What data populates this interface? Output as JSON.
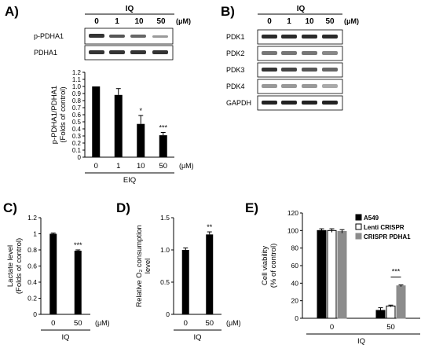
{
  "panels": [
    {
      "id": "A",
      "label": "A)",
      "type": "western-blot+bar",
      "lanes_label": "IQ",
      "doses": [
        "0",
        "1",
        "10",
        "50"
      ],
      "unit": "(μM)",
      "bands": [
        "p-PDHA1",
        "PDHA1"
      ]
    },
    {
      "id": "B",
      "label": "B)",
      "type": "western-blot",
      "lanes_label": "IQ",
      "doses": [
        "0",
        "1",
        "10",
        "50"
      ],
      "unit": "(μM)",
      "bands": [
        "PDK1",
        "PDK2",
        "PDK3",
        "PDK4",
        "GAPDH"
      ]
    },
    {
      "id": "C",
      "label": "C)"
    },
    {
      "id": "D",
      "label": "D)"
    },
    {
      "id": "E",
      "label": "E)"
    }
  ],
  "chart_data": [
    {
      "panel": "A",
      "type": "bar",
      "categories": [
        "0",
        "1",
        "10",
        "50"
      ],
      "values": [
        1.0,
        0.88,
        0.47,
        0.31
      ],
      "errors": [
        0.0,
        0.09,
        0.12,
        0.04
      ],
      "significance": [
        "",
        "",
        "*",
        "***"
      ],
      "ylabel": "p-PDHA1/PDHA1 (Folds of control)",
      "xunit": "(μM)",
      "xgroup": "EIQ",
      "ylim": [
        0,
        1.2
      ],
      "yticks": [
        "0",
        "0.1",
        "0.2",
        "0.3",
        "0.4",
        "0.5",
        "0.6",
        "0.7",
        "0.8",
        "0.9",
        "1.0",
        "1.1",
        "1.2"
      ],
      "color": "#000000"
    },
    {
      "panel": "C",
      "type": "bar",
      "categories": [
        "0",
        "50"
      ],
      "values": [
        1.0,
        0.79
      ],
      "errors": [
        0.01,
        0.01
      ],
      "significance": [
        "",
        "***"
      ],
      "ylabel": "Lactate level (Folds of control)",
      "xunit": "(μM)",
      "xgroup": "IQ",
      "ylim": [
        0,
        1.2
      ],
      "yticks": [
        "0",
        "0.2",
        "0.4",
        "0.6",
        "0.8",
        "1",
        "1.2"
      ],
      "color": "#000000"
    },
    {
      "panel": "D",
      "type": "bar",
      "categories": [
        "0",
        "50"
      ],
      "values": [
        1.0,
        1.24
      ],
      "errors": [
        0.03,
        0.04
      ],
      "significance": [
        "",
        "**"
      ],
      "ylabel": "Relative O₂ consumption level",
      "xunit": "(μM)",
      "xgroup": "IQ",
      "ylim": [
        0,
        1.5
      ],
      "yticks": [
        "0",
        "0.5",
        "1.0",
        "1.5"
      ],
      "color": "#000000"
    },
    {
      "panel": "E",
      "type": "bar",
      "categories": [
        "0",
        "50"
      ],
      "series": [
        {
          "name": "A549",
          "values": [
            100,
            9
          ],
          "errors": [
            2,
            3
          ],
          "color": "#000000",
          "fill": "#000000"
        },
        {
          "name": "Lenti CRISPR",
          "values": [
            100,
            14
          ],
          "errors": [
            2,
            1
          ],
          "color": "#000000",
          "fill": "#ffffff"
        },
        {
          "name": "CRISPR PDHA1",
          "values": [
            99,
            37
          ],
          "errors": [
            2,
            1
          ],
          "color": "#8c8c8c",
          "fill": "#8c8c8c"
        }
      ],
      "significance": "***",
      "ylabel": "Cell viability (% of control)",
      "xgroup": "IQ",
      "ylim": [
        0,
        120
      ],
      "yticks": [
        "0",
        "20",
        "40",
        "60",
        "80",
        "100",
        "120"
      ],
      "legend": "top-right"
    }
  ]
}
